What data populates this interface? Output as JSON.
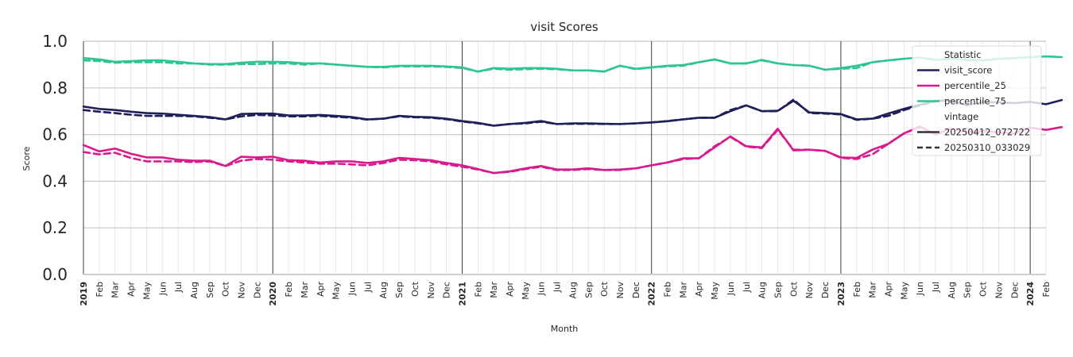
{
  "chart_data": {
    "type": "line",
    "title": "visit Scores",
    "xlabel": "Month",
    "ylabel": "Score",
    "ylim": [
      0.0,
      1.0
    ],
    "yticks": [
      "0.0",
      "0.2",
      "0.4",
      "0.6",
      "0.8",
      "1.0"
    ],
    "grid": true,
    "legend_placement": "top-right",
    "month_labels": [
      "2019",
      "Feb",
      "Mar",
      "Apr",
      "May",
      "Jun",
      "Jul",
      "Aug",
      "Sep",
      "Oct",
      "Nov",
      "Dec",
      "2020",
      "Feb",
      "Mar",
      "Apr",
      "May",
      "Jun",
      "Jul",
      "Aug",
      "Sep",
      "Oct",
      "Nov",
      "Dec",
      "2021",
      "Feb",
      "Mar",
      "Apr",
      "May",
      "Jun",
      "Jul",
      "Aug",
      "Sep",
      "Oct",
      "Nov",
      "Dec",
      "2022",
      "Feb",
      "Mar",
      "Apr",
      "May",
      "Jun",
      "Jul",
      "Aug",
      "Sep",
      "Oct",
      "Nov",
      "Dec",
      "2023",
      "Feb",
      "Mar",
      "Apr",
      "May",
      "Jun",
      "Jul",
      "Aug",
      "Sep",
      "Oct",
      "Nov",
      "Dec",
      "2024",
      "Feb"
    ],
    "year_labels": [
      "2019",
      "2020",
      "2021",
      "2022",
      "2023",
      "2024"
    ],
    "legend": {
      "group1_title": "Statistic",
      "group1": [
        {
          "label": "visit_score",
          "color": "#1f1f5a"
        },
        {
          "label": "percentile_25",
          "color": "#d81b8c"
        },
        {
          "label": "percentile_75",
          "color": "#2ec496"
        }
      ],
      "group2_title": "vintage",
      "group2": [
        {
          "label": "20250412_072722",
          "style": "solid"
        },
        {
          "label": "20250310_033029",
          "style": "dashed"
        }
      ]
    },
    "series": [
      {
        "statistic": "visit_score",
        "vintage": "20250412_072722",
        "style": "solid",
        "color": "#1f1f5a",
        "values": [
          0.72,
          0.71,
          0.705,
          0.698,
          0.692,
          0.69,
          0.685,
          0.68,
          0.675,
          0.665,
          0.688,
          0.69,
          0.69,
          0.682,
          0.682,
          0.684,
          0.68,
          0.675,
          0.665,
          0.668,
          0.68,
          0.676,
          0.674,
          0.668,
          0.658,
          0.65,
          0.638,
          0.645,
          0.65,
          0.658,
          0.645,
          0.648,
          0.648,
          0.646,
          0.645,
          0.648,
          0.652,
          0.657,
          0.665,
          0.672,
          0.672,
          0.7,
          0.725,
          0.7,
          0.702,
          0.745,
          0.695,
          0.692,
          0.688,
          0.665,
          0.668,
          0.69,
          0.71,
          0.728,
          0.745,
          0.745,
          0.725,
          0.74,
          0.738,
          0.735,
          0.74,
          0.73,
          0.748
        ]
      },
      {
        "statistic": "visit_score",
        "vintage": "20250310_033029",
        "style": "dashed",
        "color": "#1f1f5a",
        "values": [
          0.705,
          0.698,
          0.692,
          0.685,
          0.68,
          0.68,
          0.68,
          0.678,
          0.672,
          0.665,
          0.678,
          0.684,
          0.682,
          0.678,
          0.678,
          0.68,
          0.676,
          0.672,
          0.664,
          0.668,
          0.678,
          0.674,
          0.672,
          0.666,
          0.656,
          0.648,
          0.638,
          0.645,
          0.648,
          0.655,
          0.645,
          0.646,
          0.646,
          0.645,
          0.645,
          0.648,
          0.652,
          0.658,
          0.665,
          0.672,
          0.672,
          0.705,
          0.725,
          0.7,
          0.7,
          0.75,
          0.692,
          0.69,
          0.686,
          0.663,
          0.668,
          0.68,
          0.705,
          0.725,
          0.742
        ]
      },
      {
        "statistic": "percentile_25",
        "vintage": "20250412_072722",
        "style": "solid",
        "color": "#d81b8c",
        "values": [
          0.555,
          0.528,
          0.54,
          0.518,
          0.502,
          0.502,
          0.492,
          0.488,
          0.488,
          0.465,
          0.505,
          0.502,
          0.505,
          0.49,
          0.488,
          0.48,
          0.485,
          0.485,
          0.478,
          0.485,
          0.5,
          0.495,
          0.49,
          0.478,
          0.468,
          0.452,
          0.435,
          0.442,
          0.455,
          0.465,
          0.45,
          0.45,
          0.455,
          0.448,
          0.45,
          0.455,
          0.468,
          0.48,
          0.498,
          0.498,
          0.545,
          0.592,
          0.55,
          0.545,
          0.625,
          0.532,
          0.535,
          0.53,
          0.502,
          0.5,
          0.535,
          0.56,
          0.605,
          0.635,
          0.6,
          0.625,
          0.61,
          0.615,
          0.61,
          0.605,
          0.63,
          0.62,
          0.632
        ]
      },
      {
        "statistic": "percentile_25",
        "vintage": "20250310_033029",
        "style": "dashed",
        "color": "#d81b8c",
        "values": [
          0.525,
          0.515,
          0.522,
          0.5,
          0.485,
          0.485,
          0.485,
          0.482,
          0.485,
          0.465,
          0.488,
          0.495,
          0.492,
          0.485,
          0.48,
          0.475,
          0.475,
          0.472,
          0.468,
          0.478,
          0.492,
          0.49,
          0.485,
          0.472,
          0.462,
          0.45,
          0.435,
          0.44,
          0.452,
          0.462,
          0.448,
          0.448,
          0.452,
          0.448,
          0.448,
          0.455,
          0.468,
          0.48,
          0.495,
          0.498,
          0.55,
          0.59,
          0.548,
          0.542,
          0.62,
          0.535,
          0.535,
          0.53,
          0.5,
          0.495,
          0.515,
          0.56,
          0.605,
          0.632
        ]
      },
      {
        "statistic": "percentile_75",
        "vintage": "20250412_072722",
        "style": "solid",
        "color": "#2ec496",
        "values": [
          0.928,
          0.922,
          0.912,
          0.915,
          0.918,
          0.918,
          0.912,
          0.905,
          0.902,
          0.902,
          0.908,
          0.912,
          0.912,
          0.91,
          0.905,
          0.905,
          0.9,
          0.895,
          0.89,
          0.89,
          0.895,
          0.895,
          0.895,
          0.892,
          0.888,
          0.87,
          0.885,
          0.882,
          0.885,
          0.885,
          0.882,
          0.875,
          0.875,
          0.87,
          0.895,
          0.882,
          0.888,
          0.895,
          0.898,
          0.91,
          0.922,
          0.905,
          0.905,
          0.92,
          0.905,
          0.898,
          0.895,
          0.878,
          0.885,
          0.895,
          0.91,
          0.918,
          0.925,
          0.93,
          0.92,
          0.925,
          0.92,
          0.918,
          0.925,
          0.928,
          0.932,
          0.935,
          0.932
        ]
      },
      {
        "statistic": "percentile_75",
        "vintage": "20250310_033029",
        "style": "dashed",
        "color": "#2ec496",
        "values": [
          0.918,
          0.915,
          0.908,
          0.91,
          0.91,
          0.91,
          0.905,
          0.905,
          0.9,
          0.9,
          0.902,
          0.902,
          0.905,
          0.905,
          0.9,
          0.905,
          0.9,
          0.895,
          0.89,
          0.888,
          0.892,
          0.892,
          0.892,
          0.89,
          0.885,
          0.87,
          0.882,
          0.878,
          0.88,
          0.882,
          0.88,
          0.875,
          0.875,
          0.87,
          0.895,
          0.88,
          0.888,
          0.892,
          0.895,
          0.91,
          0.922,
          0.905,
          0.905,
          0.918,
          0.905,
          0.898,
          0.895,
          0.878,
          0.882,
          0.885,
          0.91,
          0.918,
          0.925
        ]
      }
    ]
  }
}
